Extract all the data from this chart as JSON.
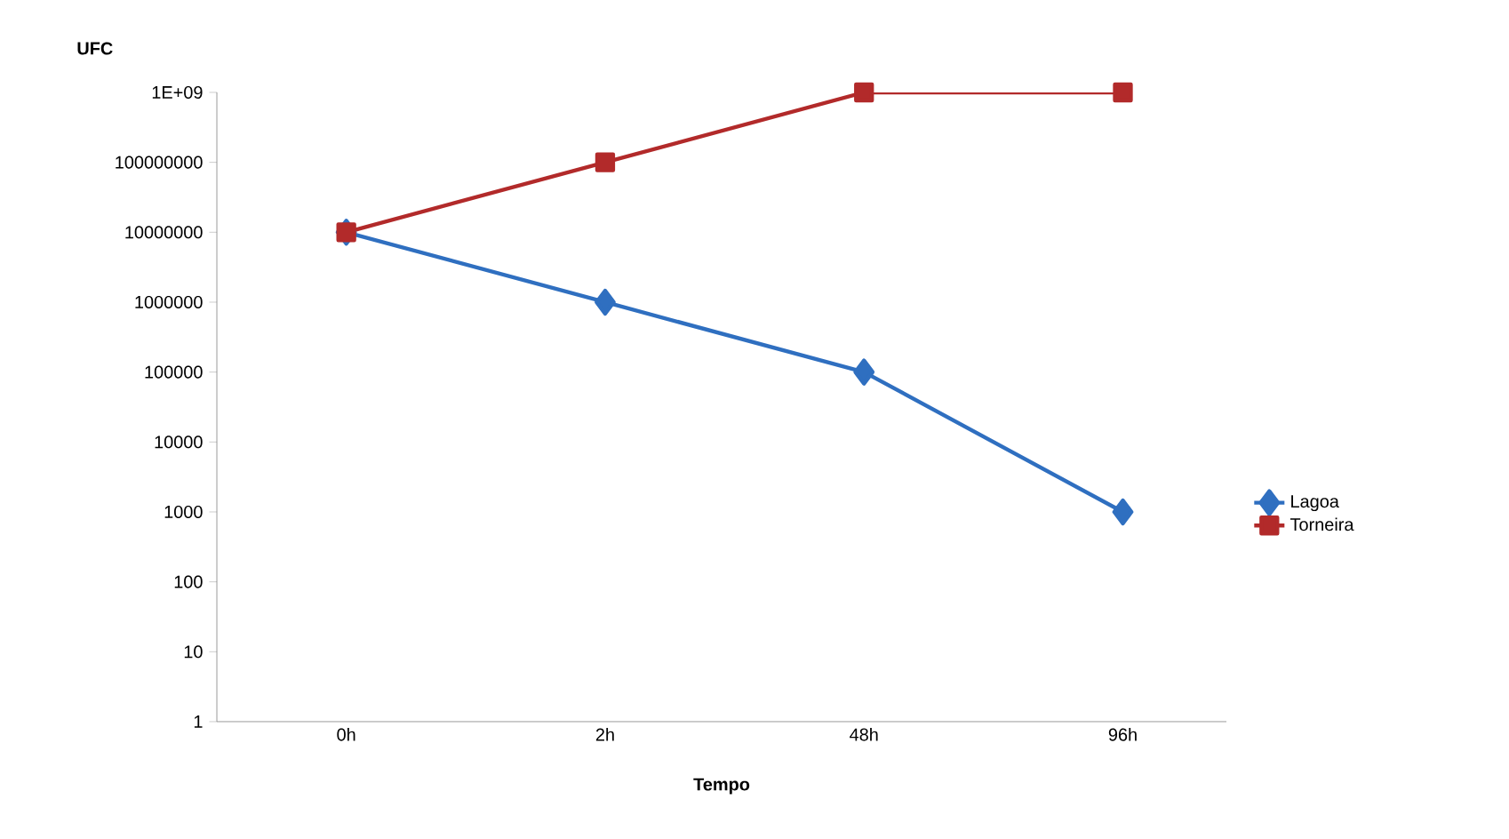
{
  "chart_data": {
    "type": "line",
    "xlabel": "Tempo",
    "ylabel": "UFC",
    "categories": [
      "0h",
      "2h",
      "48h",
      "96h"
    ],
    "series": [
      {
        "name": "Lagoa",
        "color": "#2f6fc0",
        "values": [
          10000000,
          1000000,
          100000,
          1000
        ],
        "marker": "diamond"
      },
      {
        "name": "Torneira",
        "color": "#b22a2a",
        "values": [
          10000000,
          100000000,
          1000000000,
          1000000000
        ],
        "marker": "square"
      }
    ],
    "log": "y",
    "ylim": [
      1,
      1000000000
    ],
    "yticks": [
      1,
      10,
      100,
      1000,
      10000,
      100000,
      1000000,
      10000000,
      100000000,
      {
        "value": 1000000000,
        "label": "1E+09"
      }
    ],
    "grid": false,
    "legend": "right",
    "line_style": "solid"
  }
}
